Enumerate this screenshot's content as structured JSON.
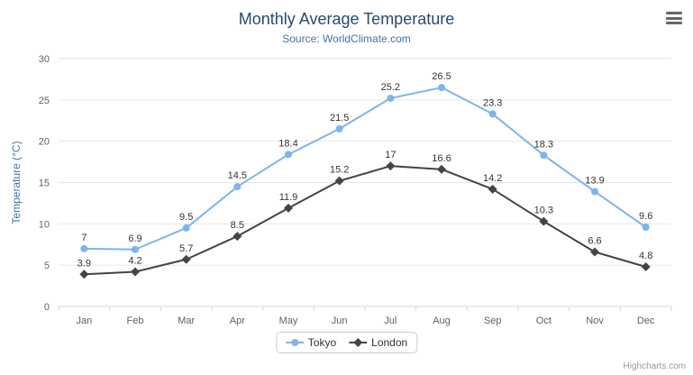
{
  "chart_data": {
    "type": "line",
    "title": "Monthly Average Temperature",
    "subtitle": "Source: WorldClimate.com",
    "ylabel": "Temperature (°C)",
    "xlabel": "",
    "categories": [
      "Jan",
      "Feb",
      "Mar",
      "Apr",
      "May",
      "Jun",
      "Jul",
      "Aug",
      "Sep",
      "Oct",
      "Nov",
      "Dec"
    ],
    "ylim": [
      0,
      30
    ],
    "ytick_interval": 5,
    "grid": true,
    "legend_position": "bottom",
    "series": [
      {
        "name": "Tokyo",
        "marker": "circle",
        "color": "#7cb5ec",
        "values": [
          7,
          6.9,
          9.5,
          14.5,
          18.4,
          21.5,
          25.2,
          26.5,
          23.3,
          18.3,
          13.9,
          9.6
        ]
      },
      {
        "name": "London",
        "marker": "diamond",
        "color": "#434348",
        "values": [
          3.9,
          4.2,
          5.7,
          8.5,
          11.9,
          15.2,
          17,
          16.6,
          14.2,
          10.3,
          6.6,
          4.8
        ]
      }
    ],
    "credits": "Highcharts.com"
  },
  "colors": {
    "title": "#274b6d",
    "subtitle": "#4572a7",
    "axis_label": "#606060",
    "grid_line": "#e6e6e6",
    "axis_line": "#ccd6eb",
    "data_label": "#333333"
  },
  "icons": {
    "context_menu": "hamburger"
  }
}
